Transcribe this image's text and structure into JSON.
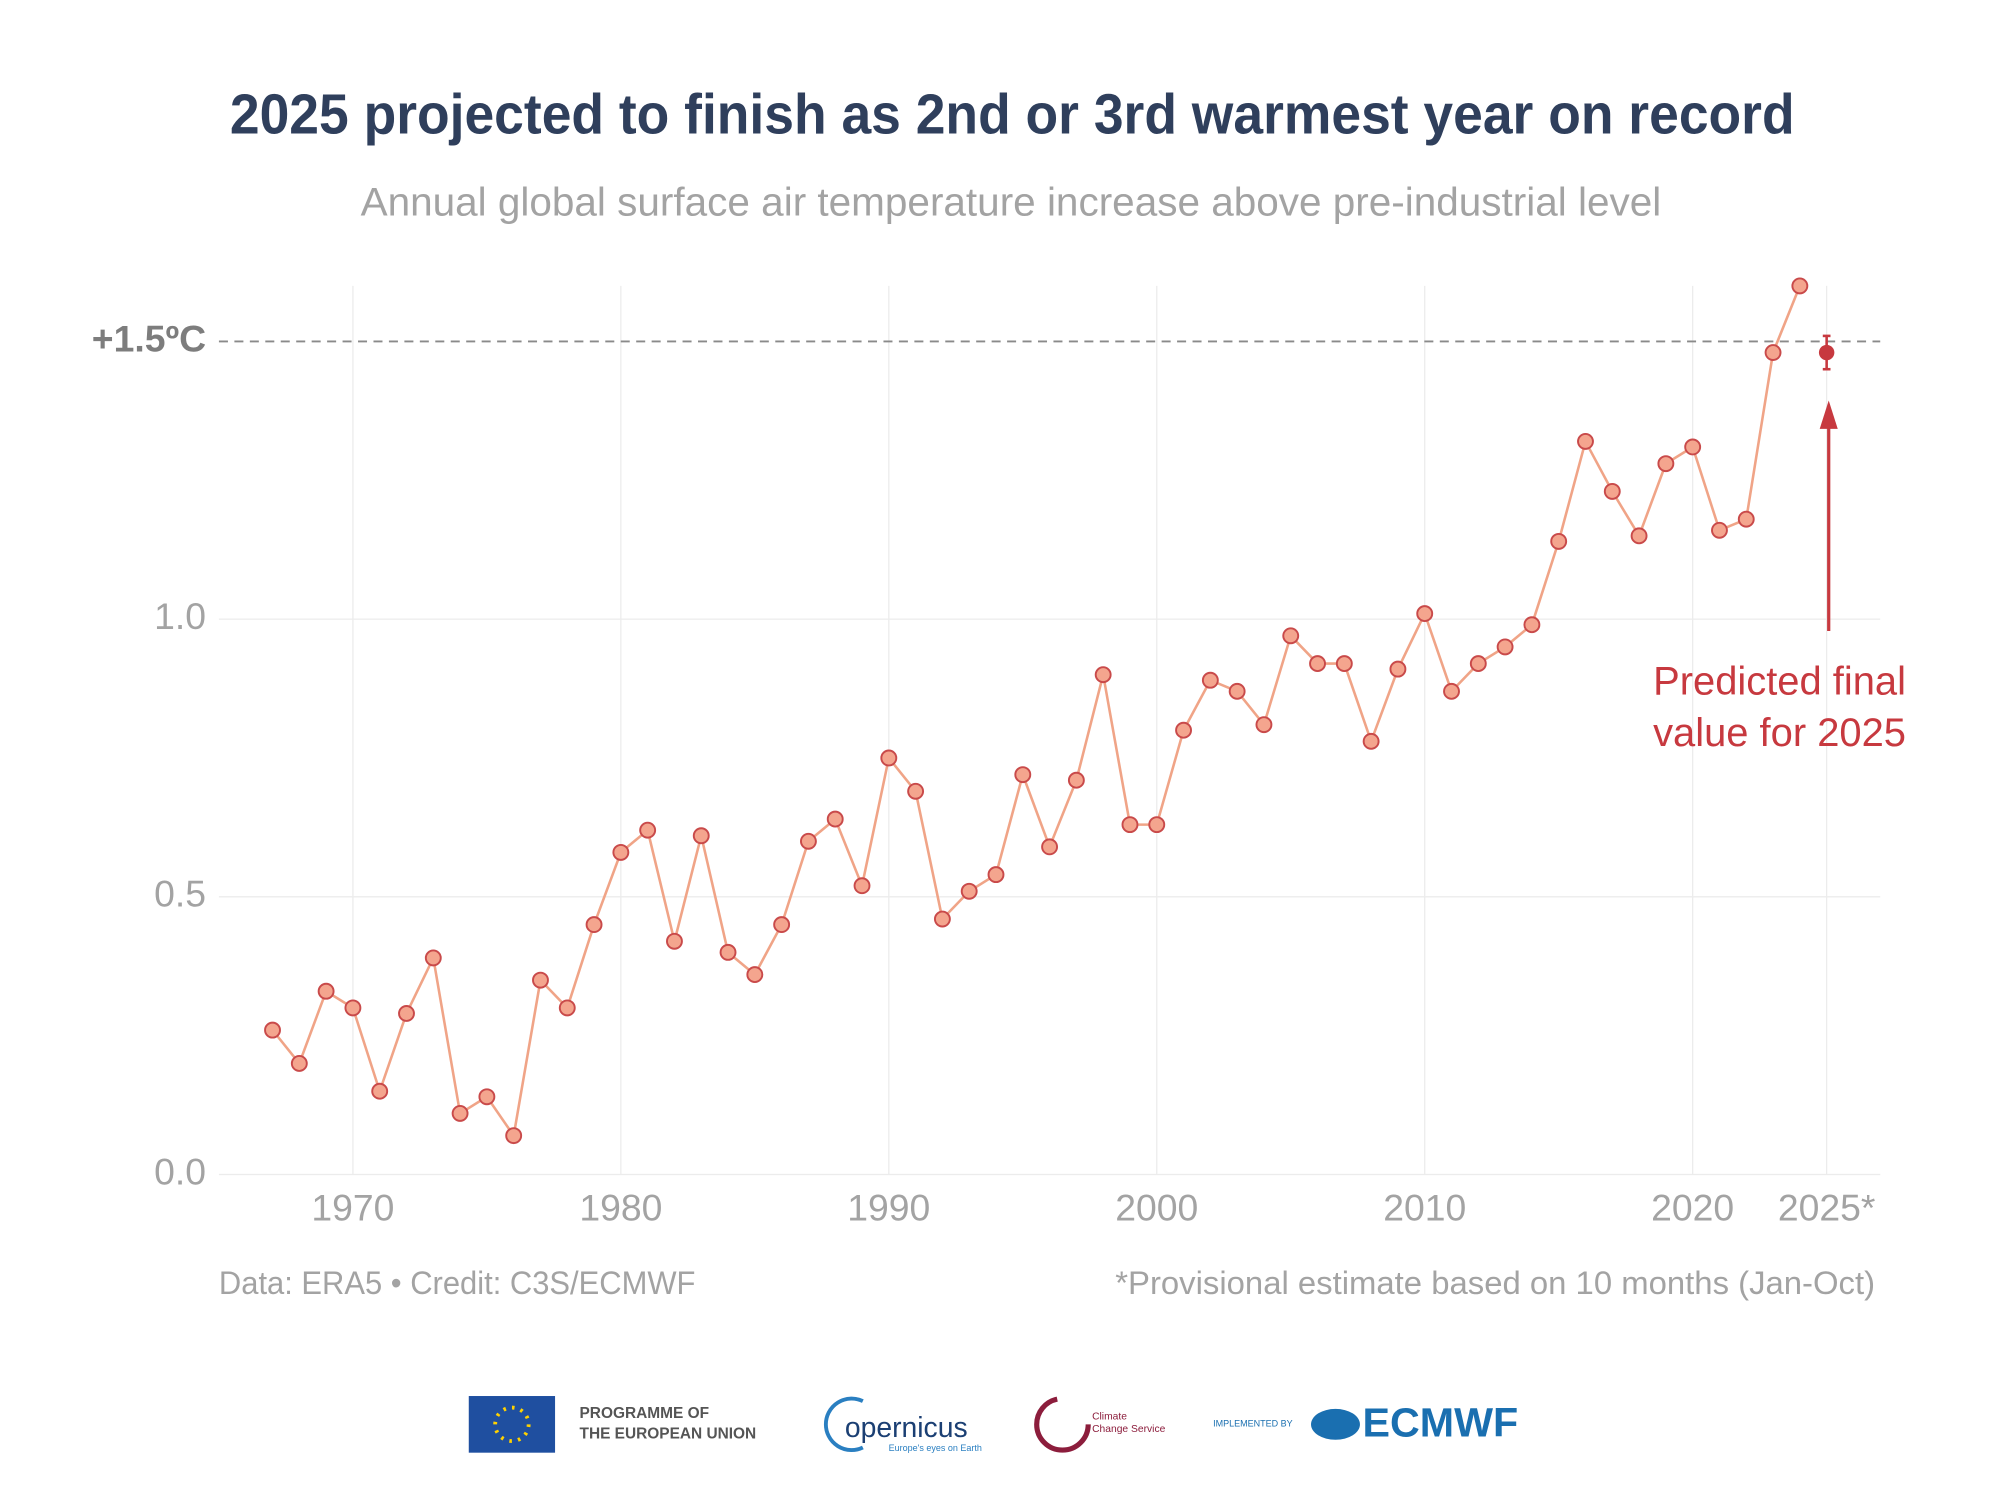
{
  "chart_data": {
    "type": "line",
    "title": "2025 projected to finish as 2nd or 3rd warmest year on record",
    "subtitle": "Annual global surface air temperature increase above pre-industrial level",
    "x": [
      1967,
      1968,
      1969,
      1970,
      1971,
      1972,
      1973,
      1974,
      1975,
      1976,
      1977,
      1978,
      1979,
      1980,
      1981,
      1982,
      1983,
      1984,
      1985,
      1986,
      1987,
      1988,
      1989,
      1990,
      1991,
      1992,
      1993,
      1994,
      1995,
      1996,
      1997,
      1998,
      1999,
      2000,
      2001,
      2002,
      2003,
      2004,
      2005,
      2006,
      2007,
      2008,
      2009,
      2010,
      2011,
      2012,
      2013,
      2014,
      2015,
      2016,
      2017,
      2018,
      2019,
      2020,
      2021,
      2022,
      2023,
      2024
    ],
    "series": [
      {
        "color": "#f0a487",
        "marker_color": "#f4a58e",
        "edge_color": "#c94a4a",
        "values": [
          0.26,
          0.2,
          0.33,
          0.3,
          0.15,
          0.29,
          0.39,
          0.11,
          0.14,
          0.07,
          0.35,
          0.3,
          0.45,
          0.58,
          0.62,
          0.42,
          0.61,
          0.4,
          0.36,
          0.45,
          0.6,
          0.64,
          0.52,
          0.75,
          0.69,
          0.46,
          0.51,
          0.54,
          0.72,
          0.59,
          0.71,
          0.9,
          0.63,
          0.63,
          0.8,
          0.89,
          0.87,
          0.81,
          0.97,
          0.92,
          0.92,
          0.78,
          0.91,
          1.01,
          0.87,
          0.92,
          0.95,
          0.99,
          1.14,
          1.32,
          1.23,
          1.15,
          1.28,
          1.31,
          1.16,
          1.18,
          1.48,
          1.6
        ]
      }
    ],
    "estimate": {
      "x": 2025,
      "value": 1.48,
      "error": 0.03,
      "color": "#c7393f"
    },
    "threshold": {
      "value": 1.5,
      "label": "+1.5ºC"
    },
    "annotation": {
      "lines": [
        "Predicted final",
        "value for 2025"
      ],
      "color": "#c7393f"
    },
    "xlim": [
      1965,
      2027
    ],
    "ylim": [
      0,
      1.6
    ],
    "xticks": [
      1970,
      1980,
      1990,
      2000,
      2010,
      2020,
      {
        "value": 2025,
        "label": "2025*"
      }
    ],
    "yticks": [
      {
        "value": 0,
        "label": "0.0"
      },
      0.5,
      {
        "value": 1,
        "label": "1.0"
      }
    ],
    "grid": true,
    "source": "Data: ERA5 • Credit: C3S/ECMWF",
    "note": "*Provisional estimate based on 10 months (Jan-Oct)"
  },
  "logos": {
    "eu": [
      "PROGRAMME OF",
      "THE EUROPEAN UNION"
    ],
    "copernicus": "opernicus",
    "copernicus_tagline": "Europe's eyes on Earth",
    "climate": [
      "Climate",
      "Change Service"
    ],
    "implemented": "IMPLEMENTED BY",
    "ecmwf": "ECMWF"
  }
}
